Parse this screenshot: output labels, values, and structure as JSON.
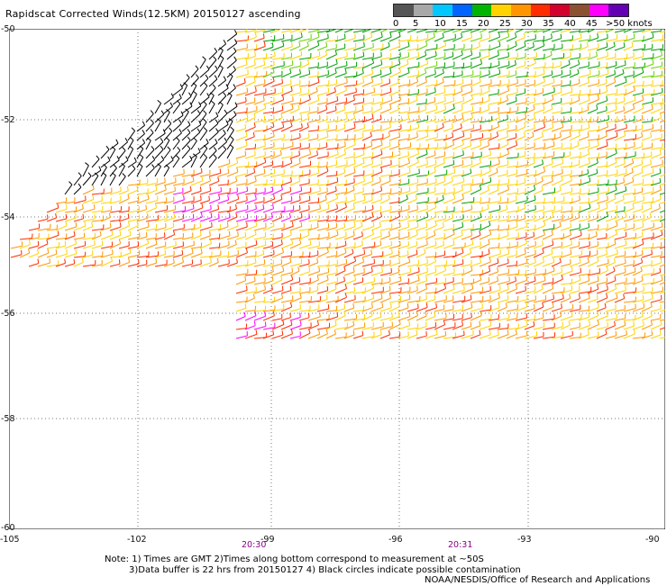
{
  "title": "Rapidscat Corrected Winds(12.5KM) 20150127 ascending",
  "legend": {
    "labels": [
      "0",
      "5",
      "10",
      "15",
      "20",
      "25",
      "30",
      "35",
      "40",
      "45",
      ">50 knots"
    ],
    "colors": [
      "#555555",
      "#a8a8a8",
      "#00c8ff",
      "#0064ff",
      "#00b400",
      "#ffd200",
      "#ff9600",
      "#ff2d00",
      "#d2002d",
      "#8c5032",
      "#ff00ff",
      "#6400b4"
    ]
  },
  "axes": {
    "lat_labels": [
      "-50",
      "-52",
      "-54",
      "-56",
      "-58",
      "-60"
    ],
    "lon_labels": [
      "-105",
      "-102",
      "-99",
      "-96",
      "-93",
      "-90"
    ]
  },
  "times": [
    "20:30",
    "20:31"
  ],
  "notes": {
    "line1": "Note: 1) Times are GMT 2)Times along bottom correspond to measurement at ~50S",
    "line2": "3)Data buffer is 22 hrs from 20150127 4) Black circles indicate possible contamination",
    "line3": "NOAA/NESDIS/Office of Research and Applications"
  }
}
